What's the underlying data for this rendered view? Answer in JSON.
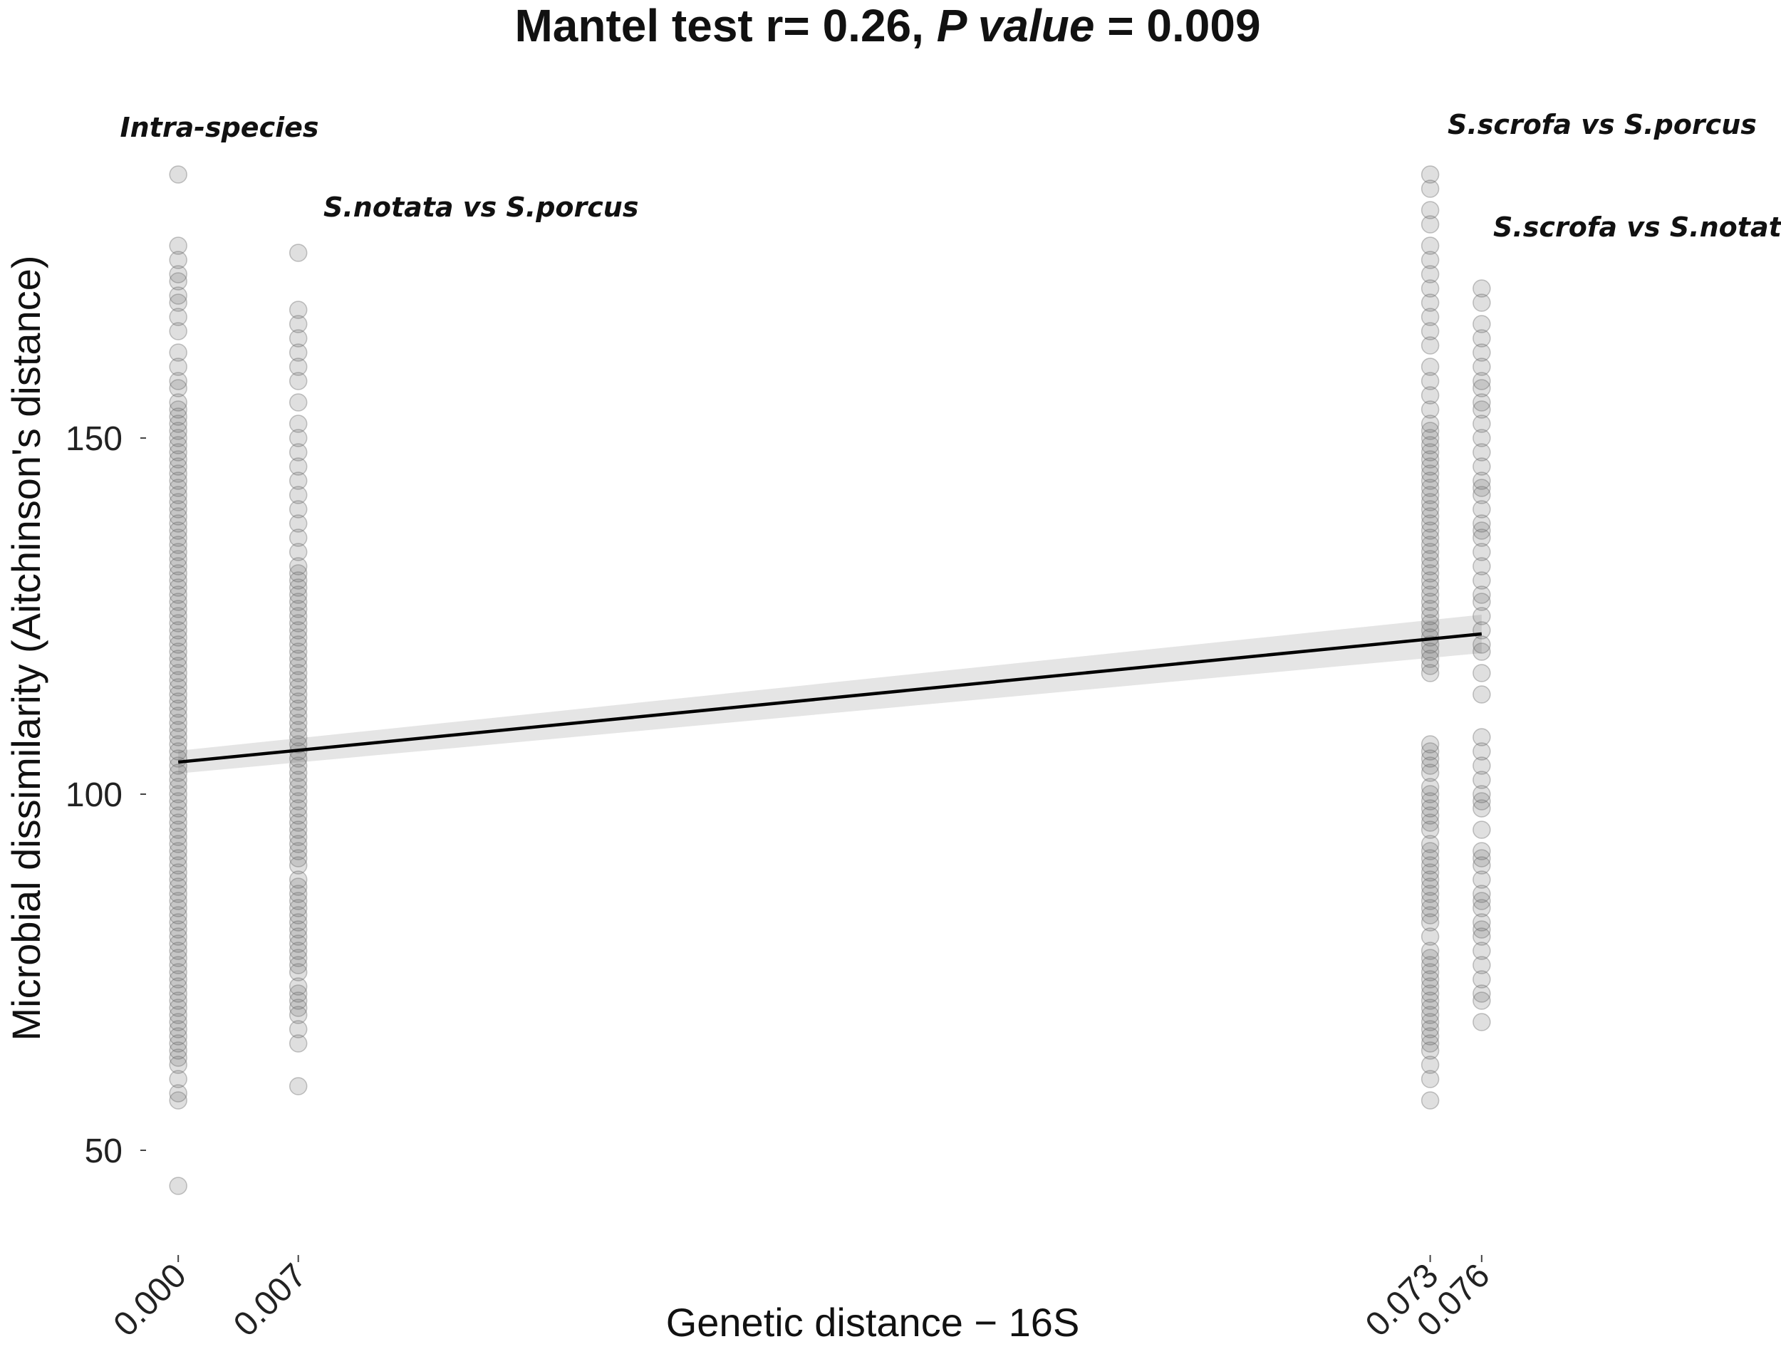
{
  "chart_data": {
    "type": "scatter",
    "title": {
      "part1": "Mantel test r= 0.26, ",
      "part2_italic": "P value",
      "part3": " = 0.009"
    },
    "xlabel": "Genetic distance − 16S",
    "ylabel": "Microbial dissimilarity (Aitchinson's distance)",
    "x_ticks": [
      "0.000",
      "0.007",
      "0.073",
      "0.076"
    ],
    "y_ticks": [
      50,
      100,
      150
    ],
    "xlim": [
      -0.0025,
      0.0785
    ],
    "ylim": [
      37.5,
      191.5
    ],
    "grid": false,
    "annotations": [
      {
        "text": "Intra-species",
        "x": 0.0
      },
      {
        "text": "S.notata vs S.porcus",
        "x": 0.007
      },
      {
        "text": "S.scrofa vs S.porcus",
        "x": 0.073
      },
      {
        "text": "S.scrofa vs S.notata",
        "x": 0.076
      }
    ],
    "series": [
      {
        "x": 0.0,
        "y": [
          45,
          57,
          58,
          60,
          62,
          63,
          64,
          65,
          66,
          67,
          68,
          69,
          70,
          71,
          72,
          73,
          74,
          75,
          76,
          77,
          78,
          79,
          80,
          81,
          82,
          83,
          84,
          85,
          86,
          87,
          88,
          89,
          90,
          91,
          92,
          93,
          94,
          95,
          96,
          97,
          98,
          99,
          100,
          101,
          102,
          103,
          104,
          105,
          106,
          107,
          108,
          109,
          110,
          111,
          112,
          113,
          114,
          115,
          116,
          117,
          118,
          119,
          120,
          121,
          122,
          123,
          124,
          125,
          126,
          127,
          128,
          129,
          130,
          131,
          132,
          133,
          134,
          135,
          136,
          137,
          138,
          139,
          140,
          141,
          142,
          143,
          144,
          145,
          146,
          147,
          148,
          149,
          150,
          151,
          152,
          153,
          154,
          155,
          157,
          158,
          160,
          162,
          165,
          167,
          169,
          170,
          172,
          173,
          175,
          177,
          187
        ]
      },
      {
        "x": 0.007,
        "y": [
          59,
          65,
          67,
          69,
          70,
          71,
          72,
          73,
          75,
          76,
          77,
          78,
          79,
          80,
          81,
          82,
          83,
          84,
          85,
          86,
          87,
          88,
          90,
          91,
          92,
          93,
          94,
          95,
          96,
          97,
          98,
          99,
          100,
          101,
          102,
          103,
          104,
          105,
          106,
          107,
          108,
          109,
          110,
          111,
          112,
          113,
          114,
          115,
          116,
          117,
          118,
          119,
          120,
          121,
          122,
          123,
          124,
          125,
          126,
          127,
          128,
          129,
          130,
          131,
          132,
          134,
          136,
          138,
          140,
          142,
          144,
          146,
          148,
          150,
          152,
          155,
          158,
          160,
          162,
          164,
          166,
          168,
          176
        ]
      },
      {
        "x": 0.073,
        "y": [
          57,
          60,
          62,
          64,
          65,
          66,
          67,
          68,
          69,
          70,
          71,
          72,
          73,
          74,
          75,
          76,
          77,
          78,
          80,
          82,
          83,
          84,
          85,
          86,
          87,
          88,
          89,
          90,
          91,
          92,
          93,
          95,
          96,
          97,
          98,
          99,
          100,
          101,
          103,
          104,
          105,
          106,
          107,
          117,
          118,
          119,
          120,
          121,
          122,
          123,
          124,
          125,
          126,
          127,
          128,
          129,
          130,
          131,
          132,
          133,
          134,
          135,
          136,
          137,
          138,
          139,
          140,
          141,
          142,
          143,
          144,
          145,
          146,
          147,
          148,
          149,
          150,
          151,
          152,
          154,
          156,
          158,
          160,
          163,
          165,
          167,
          169,
          171,
          173,
          175,
          177,
          180,
          182,
          185,
          187
        ]
      },
      {
        "x": 0.076,
        "y": [
          68,
          71,
          72,
          74,
          76,
          78,
          80,
          81,
          82,
          84,
          85,
          86,
          88,
          90,
          91,
          92,
          95,
          98,
          99,
          100,
          102,
          104,
          106,
          108,
          114,
          117,
          120,
          121,
          123,
          125,
          127,
          128,
          130,
          132,
          134,
          136,
          137,
          138,
          140,
          142,
          143,
          144,
          146,
          148,
          150,
          152,
          154,
          155,
          157,
          158,
          160,
          162,
          164,
          166,
          169,
          171
        ]
      }
    ],
    "regression": {
      "x_start": 0.0,
      "y_start": 104.5,
      "x_end": 0.076,
      "y_end": 122.5,
      "ci_halfwidth_start": 1.6,
      "ci_halfwidth_end": 2.7
    }
  }
}
